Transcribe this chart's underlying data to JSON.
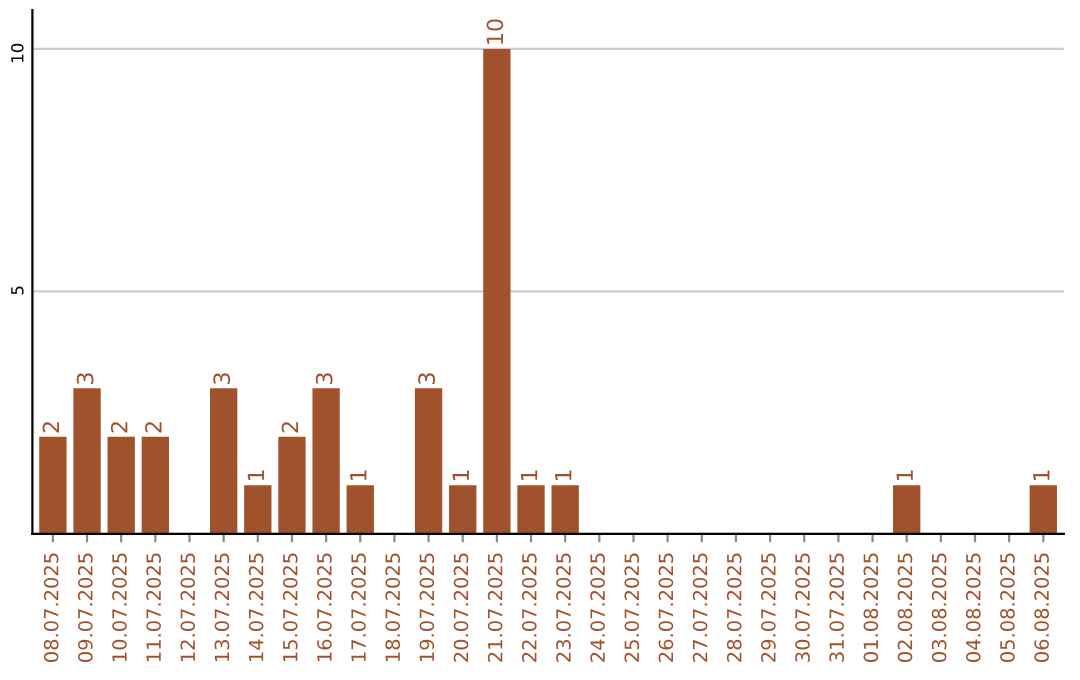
{
  "chart_data": {
    "type": "bar",
    "categories": [
      "08.07.2025",
      "09.07.2025",
      "10.07.2025",
      "11.07.2025",
      "12.07.2025",
      "13.07.2025",
      "14.07.2025",
      "15.07.2025",
      "16.07.2025",
      "17.07.2025",
      "18.07.2025",
      "19.07.2025",
      "20.07.2025",
      "21.07.2025",
      "22.07.2025",
      "23.07.2025",
      "24.07.2025",
      "25.07.2025",
      "26.07.2025",
      "27.07.2025",
      "28.07.2025",
      "29.07.2025",
      "30.07.2025",
      "31.07.2025",
      "01.08.2025",
      "02.08.2025",
      "03.08.2025",
      "04.08.2025",
      "05.08.2025",
      "06.08.2025"
    ],
    "values": [
      2,
      3,
      2,
      2,
      0,
      3,
      1,
      2,
      3,
      1,
      0,
      3,
      1,
      10,
      1,
      1,
      0,
      0,
      0,
      0,
      0,
      0,
      0,
      0,
      0,
      1,
      0,
      0,
      0,
      1
    ],
    "value_labels": [
      "2",
      "3",
      "2",
      "2",
      null,
      "3",
      "1",
      "2",
      "3",
      "1",
      null,
      "3",
      "1",
      "10",
      "1",
      "1",
      null,
      null,
      null,
      null,
      null,
      null,
      null,
      null,
      null,
      "1",
      null,
      null,
      null,
      "1"
    ],
    "color": "#a0522d",
    "ylim": [
      0,
      10.8
    ],
    "yticks": [
      {
        "value": 0,
        "label": null
      },
      5,
      10
    ],
    "grid": "y"
  }
}
